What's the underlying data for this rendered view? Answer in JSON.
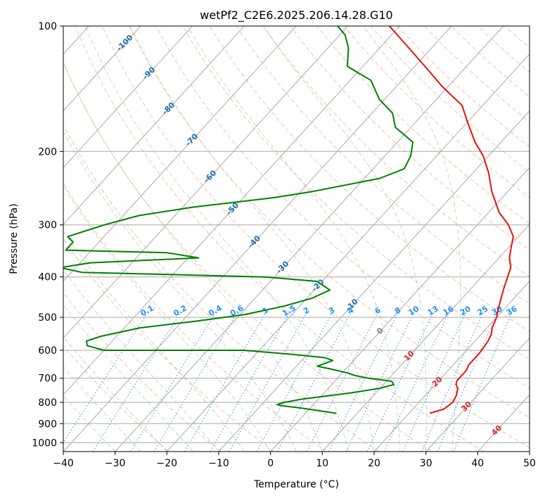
{
  "chart_data": {
    "type": "line",
    "subtype": "skew-t log-p diagram",
    "title": "wetPf2_C2E6.2025.206.14.28.G10",
    "xlabel": "Temperature (°C)",
    "ylabel": "Pressure (hPa)",
    "xlim": [
      -40,
      50
    ],
    "ylim": [
      1050,
      100
    ],
    "yscale": "log",
    "x_ticks": [
      "−40",
      "−30",
      "−20",
      "−10",
      "0",
      "10",
      "20",
      "30",
      "40",
      "50"
    ],
    "y_ticks": [
      "100",
      "200",
      "300",
      "400",
      "500",
      "600",
      "700",
      "800",
      "900",
      "1000"
    ],
    "grid": true,
    "series": [
      {
        "role": "temperature",
        "color": "#e8120c",
        "points": [
          [
            24,
            850
          ],
          [
            26,
            830
          ],
          [
            26.5,
            800
          ],
          [
            26,
            770
          ],
          [
            25,
            740
          ],
          [
            24,
            725
          ],
          [
            23.5,
            710
          ],
          [
            23.5,
            690
          ],
          [
            23.5,
            670
          ],
          [
            23,
            650
          ],
          [
            23,
            630
          ],
          [
            23,
            610
          ],
          [
            22.8,
            590
          ],
          [
            22.5,
            570
          ],
          [
            22,
            550
          ],
          [
            21,
            530
          ],
          [
            20,
            500
          ],
          [
            19,
            480
          ],
          [
            18,
            460
          ],
          [
            17,
            440
          ],
          [
            16,
            420
          ],
          [
            15,
            400
          ],
          [
            14,
            380
          ],
          [
            12,
            360
          ],
          [
            10.5,
            340
          ],
          [
            9,
            320
          ],
          [
            6,
            300
          ],
          [
            2,
            280
          ],
          [
            -3,
            250
          ],
          [
            -7,
            225
          ],
          [
            -11,
            205
          ],
          [
            -15,
            190
          ],
          [
            -20,
            170
          ],
          [
            -24,
            155
          ],
          [
            -31,
            140
          ],
          [
            -38,
            125
          ],
          [
            -46,
            110
          ],
          [
            -52,
            100
          ]
        ]
      },
      {
        "role": "dewpoint",
        "color": "#008000",
        "points": [
          [
            6,
            850
          ],
          [
            -2,
            825
          ],
          [
            -6,
            815
          ],
          [
            -7,
            810
          ],
          [
            -6,
            800
          ],
          [
            -3,
            785
          ],
          [
            5,
            760
          ],
          [
            10,
            740
          ],
          [
            12,
            725
          ],
          [
            11,
            712
          ],
          [
            6,
            700
          ],
          [
            3,
            690
          ],
          [
            1,
            680
          ],
          [
            -3,
            665
          ],
          [
            -6,
            655
          ],
          [
            -5,
            645
          ],
          [
            -4,
            635
          ],
          [
            -6,
            625
          ],
          [
            -12,
            615
          ],
          [
            -23,
            600
          ],
          [
            -50,
            600
          ],
          [
            -54,
            585
          ],
          [
            -55,
            570
          ],
          [
            -53,
            555
          ],
          [
            -47,
            530
          ],
          [
            -37,
            510
          ],
          [
            -29,
            492
          ],
          [
            -23,
            470
          ],
          [
            -19,
            450
          ],
          [
            -17,
            430
          ],
          [
            -21,
            410
          ],
          [
            -32,
            400
          ],
          [
            -68,
            390
          ],
          [
            -73,
            380
          ],
          [
            -68,
            370
          ],
          [
            -48,
            360
          ],
          [
            -55,
            350
          ],
          [
            -75,
            345
          ],
          [
            -75,
            330
          ],
          [
            -77,
            320
          ],
          [
            -72,
            300
          ],
          [
            -67,
            285
          ],
          [
            -58,
            272
          ],
          [
            -44,
            258
          ],
          [
            -38,
            250
          ],
          [
            -27,
            232
          ],
          [
            -24,
            220
          ],
          [
            -25,
            205
          ],
          [
            -27,
            190
          ],
          [
            -33,
            175
          ],
          [
            -36,
            162
          ],
          [
            -41,
            150
          ],
          [
            -46,
            135
          ],
          [
            -53,
            125
          ],
          [
            -56,
            113
          ],
          [
            -59,
            105
          ],
          [
            -62,
            100
          ]
        ]
      }
    ],
    "dry_adiabats_theta_K": [
      250,
      260,
      270,
      280,
      290,
      300,
      310,
      320,
      330,
      340,
      350,
      360,
      370,
      380,
      390,
      400,
      410,
      420,
      430,
      440,
      450,
      460,
      470,
      480,
      490,
      500,
      510,
      520
    ],
    "moist_adiabat_start_temps_C": [
      -30,
      -25,
      -20,
      -15,
      -10,
      -5,
      0,
      5,
      10,
      15,
      20,
      25,
      30,
      35
    ],
    "mixing_ratio_lines": {
      "values": [
        0.1,
        0.2,
        0.4,
        0.6,
        1,
        1.5,
        2,
        3,
        4,
        6,
        8,
        10,
        13,
        16,
        20,
        25,
        30,
        36
      ],
      "labels": [
        "0.1",
        "0.2",
        "0.4",
        "0.6",
        "1",
        "1.5",
        "2",
        "3",
        "4",
        "6",
        "8",
        "10",
        "13",
        "16",
        "20",
        "25",
        "30",
        "36"
      ],
      "label_color": "#1e90ff"
    },
    "isotherm_labels_cold": {
      "values": [
        -100,
        -90,
        -80,
        -70,
        -60,
        -50,
        -40,
        -30,
        -20,
        -10
      ],
      "labels": [
        "-100",
        "-90",
        "-80",
        "-70",
        "-60",
        "-50",
        "-40",
        "-30",
        "-20",
        "-10"
      ],
      "color": "#1f6fb0"
    },
    "isotherm_labels_zero": {
      "value": 0,
      "label": "0",
      "color": "#808080"
    },
    "isotherm_labels_warm": {
      "values": [
        10,
        20,
        30,
        40
      ],
      "labels": [
        "10",
        "20",
        "30",
        "40"
      ],
      "color": "#d62728"
    },
    "colors": {
      "isotherm": "#a9a9a9",
      "isobar": "#a9a9a9",
      "dry_adiabat": "#f4a582",
      "moist_adiabat": "#a1d99b",
      "mixing_ratio": "#1e90ff"
    }
  }
}
